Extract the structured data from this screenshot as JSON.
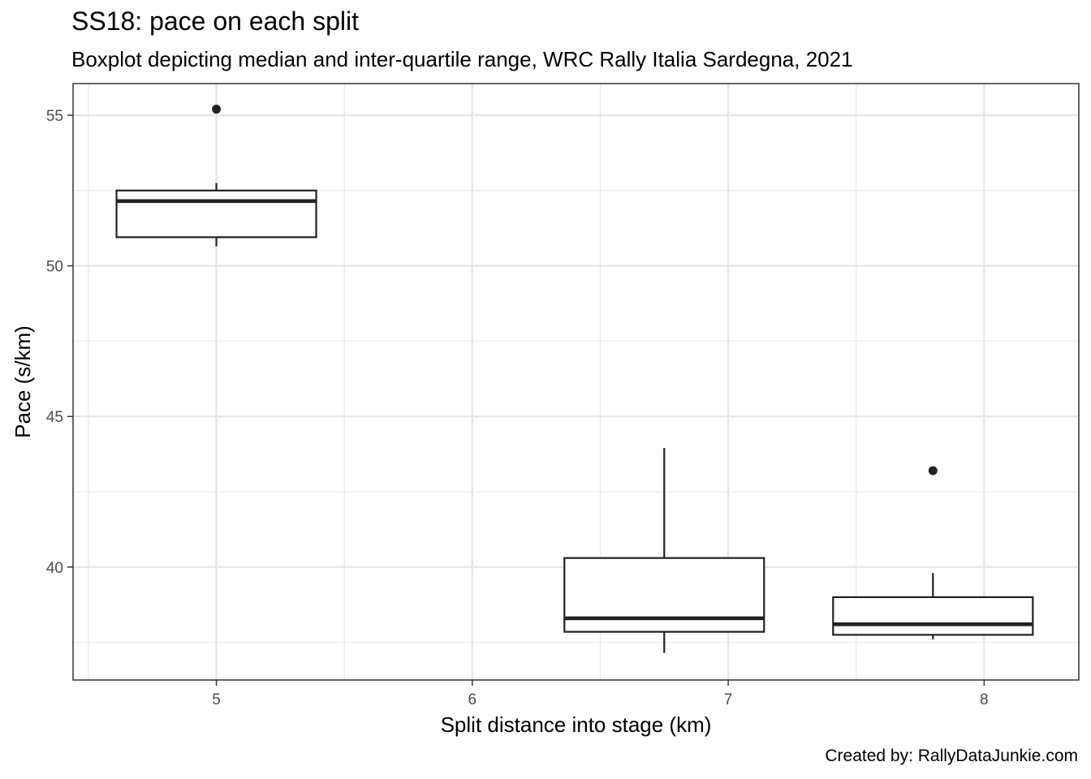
{
  "chart_data": {
    "type": "boxplot",
    "title": "SS18: pace on each split",
    "subtitle": "Boxplot depicting median and inter-quartile range, WRC Rally Italia Sardegna, 2021",
    "caption": "Created by: RallyDataJunkie.com",
    "xlabel": "Split distance into stage (km)",
    "ylabel": "Pace (s/km)",
    "xlim": [
      4.44,
      8.37
    ],
    "ylim": [
      36.25,
      56.05
    ],
    "x_ticks": [
      5,
      6,
      7,
      8
    ],
    "y_ticks": [
      40,
      45,
      50,
      55
    ],
    "grid": true,
    "boxes": [
      {
        "x": 5.0,
        "whisker_low": 50.65,
        "q1": 50.95,
        "median": 52.15,
        "q3": 52.5,
        "whisker_high": 52.75,
        "outliers": [
          55.2
        ]
      },
      {
        "x": 6.75,
        "whisker_low": 37.15,
        "q1": 37.85,
        "median": 38.3,
        "q3": 40.3,
        "whisker_high": 43.95,
        "outliers": []
      },
      {
        "x": 7.8,
        "whisker_low": 37.6,
        "q1": 37.75,
        "median": 38.1,
        "q3": 39.0,
        "whisker_high": 39.8,
        "outliers": [
          43.2
        ]
      }
    ]
  }
}
